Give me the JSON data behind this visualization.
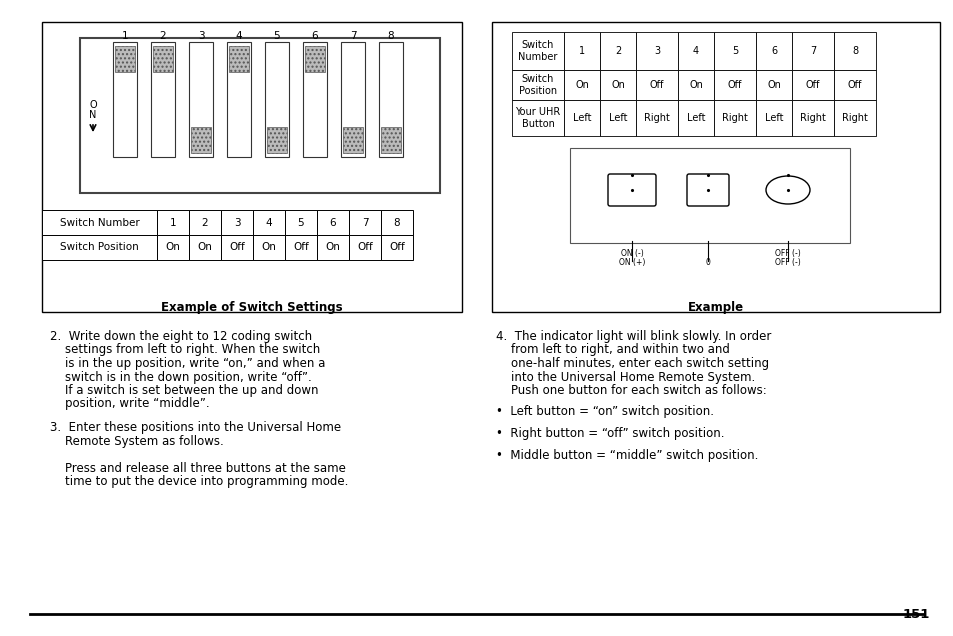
{
  "page_number": "151",
  "bg_color": "#ffffff",
  "left_caption": "Example of Switch Settings",
  "right_caption": "Example",
  "left_table_headers": [
    "Switch Number",
    "1",
    "2",
    "3",
    "4",
    "5",
    "6",
    "7",
    "8"
  ],
  "left_table_row2": [
    "Switch Position",
    "On",
    "On",
    "Off",
    "On",
    "Off",
    "On",
    "Off",
    "Off"
  ],
  "right_table_row1": [
    "Switch\nNumber",
    "1",
    "2",
    "3",
    "4",
    "5",
    "6",
    "7",
    "8"
  ],
  "right_table_row2": [
    "Switch\nPosition",
    "On",
    "On",
    "Off",
    "On",
    "Off",
    "On",
    "Off",
    "Off"
  ],
  "right_table_row3": [
    "Your UHR\nButton",
    "Left",
    "Left",
    "Right",
    "Left",
    "Right",
    "Left",
    "Right",
    "Right"
  ],
  "switch_positions": [
    "on",
    "on",
    "off",
    "on",
    "off",
    "on",
    "off",
    "off"
  ],
  "item2_lines": [
    "2.  Write down the eight to 12 coding switch",
    "    settings from left to right. When the switch",
    "    is in the up position, write “on,” and when a",
    "    switch is in the down position, write “off”.",
    "    If a switch is set between the up and down",
    "    position, write “middle”."
  ],
  "item3_lines": [
    "3.  Enter these positions into the Universal Home",
    "    Remote System as follows.",
    "",
    "    Press and release all three buttons at the same",
    "    time to put the device into programming mode."
  ],
  "item4_lines": [
    "4.  The indicator light will blink slowly. In order",
    "    from left to right, and within two and",
    "    one-half minutes, enter each switch setting",
    "    into the Universal Home Remote System.",
    "    Push one button for each switch as follows:"
  ],
  "bullets": [
    "•  Left button = “on” switch position.",
    "•  Right button = “off” switch position.",
    "•  Middle button = “middle” switch position."
  ]
}
